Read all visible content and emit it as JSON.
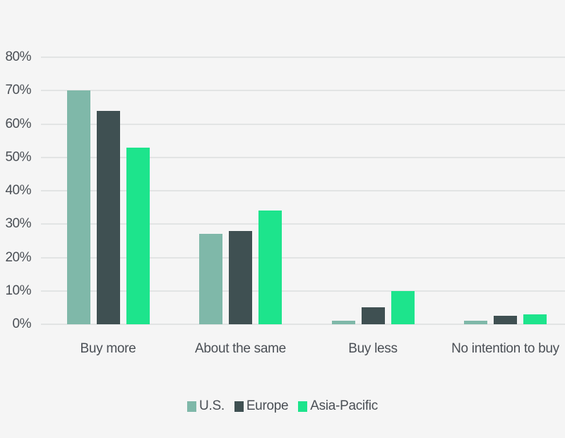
{
  "chart_data": {
    "type": "bar",
    "title": "",
    "xlabel": "",
    "ylabel": "",
    "categories": [
      "Buy more",
      "About the same",
      "Buy less",
      "No intention to buy"
    ],
    "series": [
      {
        "name": "U.S.",
        "color": "#7fb8a9",
        "values": [
          70,
          27,
          1,
          1
        ]
      },
      {
        "name": "Europe",
        "color": "#3f5052",
        "values": [
          64,
          28,
          5,
          2.5
        ]
      },
      {
        "name": "Asia-Pacific",
        "color": "#1de48c",
        "values": [
          53,
          34,
          10,
          3
        ]
      }
    ],
    "ylim": [
      0,
      80
    ],
    "yticks": [
      "0%",
      "10%",
      "20%",
      "30%",
      "40%",
      "50%",
      "60%",
      "70%",
      "80%"
    ],
    "grid": true,
    "legend_position": "bottom"
  },
  "colors": {
    "background": "#f5f5f5",
    "text": "#4a4f55",
    "gridline": "#e2e4e4"
  }
}
